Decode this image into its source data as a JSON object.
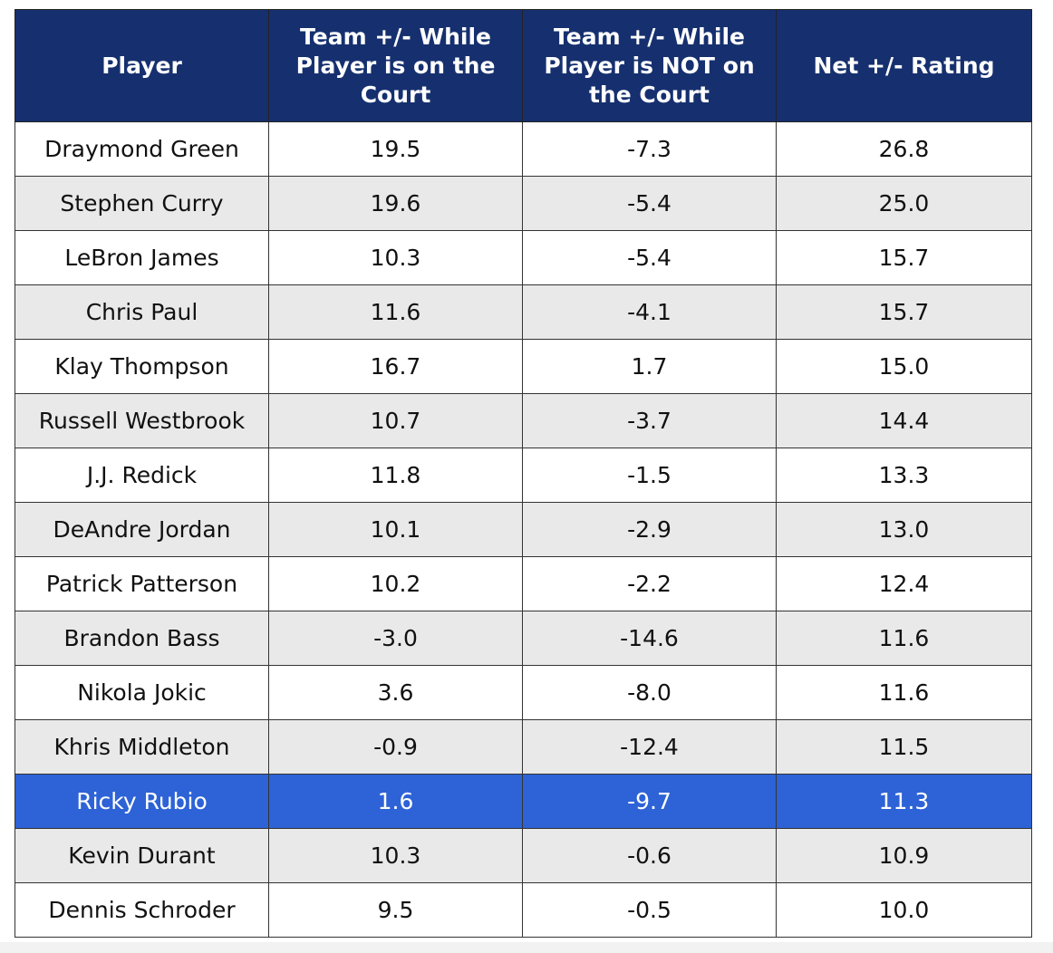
{
  "chart_data": {
    "type": "table",
    "columns": [
      "Player",
      "Team +/- While Player is on the Court",
      "Team +/- While Player is NOT on the Court",
      "Net +/- Rating"
    ],
    "rows": [
      [
        "Draymond Green",
        "19.5",
        "-7.3",
        "26.8"
      ],
      [
        "Stephen Curry",
        "19.6",
        "-5.4",
        "25.0"
      ],
      [
        "LeBron James",
        "10.3",
        "-5.4",
        "15.7"
      ],
      [
        "Chris Paul",
        "11.6",
        "-4.1",
        "15.7"
      ],
      [
        "Klay Thompson",
        "16.7",
        "1.7",
        "15.0"
      ],
      [
        "Russell Westbrook",
        "10.7",
        "-3.7",
        "14.4"
      ],
      [
        "J.J. Redick",
        "11.8",
        "-1.5",
        "13.3"
      ],
      [
        "DeAndre Jordan",
        "10.1",
        "-2.9",
        "13.0"
      ],
      [
        "Patrick Patterson",
        "10.2",
        "-2.2",
        "12.4"
      ],
      [
        "Brandon Bass",
        "-3.0",
        "-14.6",
        "11.6"
      ],
      [
        "Nikola Jokic",
        "3.6",
        "-8.0",
        "11.6"
      ],
      [
        "Khris Middleton",
        "-0.9",
        "-12.4",
        "11.5"
      ],
      [
        "Ricky Rubio",
        "1.6",
        "-9.7",
        "11.3"
      ],
      [
        "Kevin Durant",
        "10.3",
        "-0.6",
        "10.9"
      ],
      [
        "Dennis Schroder",
        "9.5",
        "-0.5",
        "10.0"
      ]
    ],
    "highlighted_player": "Ricky Rubio"
  },
  "colors": {
    "header_background": "#16306f",
    "header_text": "#ffffff",
    "highlight_background": "#2d63d6",
    "highlight_text": "#ffffff",
    "stripe_background": "#e9e9e9",
    "row_background": "#ffffff"
  }
}
